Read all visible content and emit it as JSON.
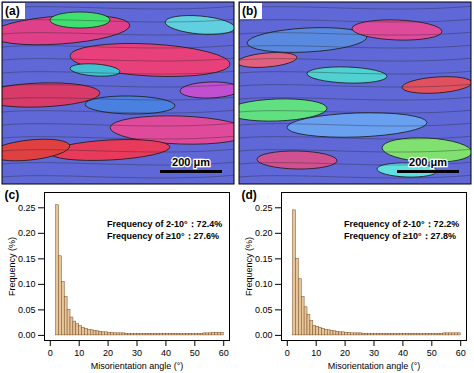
{
  "chart_data": [
    {
      "type": "image",
      "label": "(a)",
      "scale_bar": "200 μm"
    },
    {
      "type": "image",
      "label": "(b)",
      "scale_bar": "200 μm"
    },
    {
      "type": "histogram",
      "label": "(c)",
      "x_label": "Misorientation angle (°)",
      "y_label": "Frequency (%)",
      "annotations": [
        "Frequency of 2-10°：72.4%",
        "Frequency of ≥10°：27.6%"
      ],
      "color": "#e6c59a",
      "bins": [
        2,
        3,
        4,
        5,
        6,
        7,
        8,
        9,
        10,
        11,
        12,
        13,
        14,
        15,
        16,
        17,
        18,
        19,
        20,
        21,
        22,
        23,
        24,
        25,
        26,
        27,
        28,
        29,
        30,
        31,
        32,
        33,
        34,
        35,
        36,
        37,
        38,
        39,
        40,
        41,
        42,
        43,
        44,
        45,
        46,
        47,
        48,
        49,
        50,
        51,
        52,
        53,
        54,
        55,
        56,
        57,
        58,
        59,
        60
      ],
      "counts": [
        0.255,
        0.155,
        0.105,
        0.075,
        0.05,
        0.035,
        0.027,
        0.022,
        0.018,
        0.015,
        0.013,
        0.011,
        0.01,
        0.009,
        0.008,
        0.007,
        0.006,
        0.006,
        0.005,
        0.005,
        0.004,
        0.004,
        0.004,
        0.004,
        0.003,
        0.003,
        0.003,
        0.003,
        0.003,
        0.003,
        0.003,
        0.003,
        0.003,
        0.003,
        0.003,
        0.003,
        0.003,
        0.003,
        0.003,
        0.003,
        0.003,
        0.003,
        0.003,
        0.003,
        0.003,
        0.003,
        0.003,
        0.003,
        0.003,
        0.003,
        0.003,
        0.004,
        0.004,
        0.004,
        0.005,
        0.005,
        0.005,
        0.005
      ],
      "xlim": [
        -2,
        62
      ],
      "xticks": [
        0,
        10,
        20,
        30,
        40,
        50,
        60
      ],
      "ylim": [
        -0.01,
        0.28
      ],
      "yticks": [
        {
          "value": 0,
          "label": "0.00"
        },
        {
          "value": 0.05,
          "label": "0.05"
        },
        {
          "value": 0.1,
          "label": "0.10"
        },
        {
          "value": 0.15,
          "label": "0.15"
        },
        {
          "value": 0.2,
          "label": "0.20"
        },
        {
          "value": 0.25,
          "label": "0.25"
        }
      ]
    },
    {
      "type": "histogram",
      "label": "(d)",
      "x_label": "Misorientation angle (°)",
      "y_label": "Frequency (%)",
      "annotations": [
        "Frequency of 2-10°：72.2%",
        "Frequency of ≥10°：27.8%"
      ],
      "color": "#e6c59a",
      "bins": [
        2,
        3,
        4,
        5,
        6,
        7,
        8,
        9,
        10,
        11,
        12,
        13,
        14,
        15,
        16,
        17,
        18,
        19,
        20,
        21,
        22,
        23,
        24,
        25,
        26,
        27,
        28,
        29,
        30,
        31,
        32,
        33,
        34,
        35,
        36,
        37,
        38,
        39,
        40,
        41,
        42,
        43,
        44,
        45,
        46,
        47,
        48,
        49,
        50,
        51,
        52,
        53,
        54,
        55,
        56,
        57,
        58,
        59,
        60
      ],
      "counts": [
        0.245,
        0.15,
        0.11,
        0.075,
        0.055,
        0.04,
        0.028,
        0.019,
        0.017,
        0.015,
        0.013,
        0.011,
        0.01,
        0.009,
        0.008,
        0.007,
        0.006,
        0.006,
        0.005,
        0.005,
        0.004,
        0.004,
        0.004,
        0.004,
        0.003,
        0.003,
        0.003,
        0.003,
        0.003,
        0.003,
        0.003,
        0.003,
        0.003,
        0.003,
        0.003,
        0.003,
        0.003,
        0.003,
        0.003,
        0.003,
        0.003,
        0.003,
        0.003,
        0.003,
        0.003,
        0.003,
        0.003,
        0.003,
        0.003,
        0.003,
        0.003,
        0.003,
        0.004,
        0.004,
        0.004,
        0.004,
        0.004,
        0.004
      ],
      "xlim": [
        -2,
        62
      ],
      "xticks": [
        0,
        10,
        20,
        30,
        40,
        50,
        60
      ],
      "ylim": [
        -0.01,
        0.28
      ],
      "yticks": [
        {
          "value": 0,
          "label": "0.00"
        },
        {
          "value": 0.05,
          "label": "0.05"
        },
        {
          "value": 0.1,
          "label": "0.10"
        },
        {
          "value": 0.15,
          "label": "0.15"
        },
        {
          "value": 0.2,
          "label": "0.20"
        },
        {
          "value": 0.25,
          "label": "0.25"
        }
      ]
    }
  ]
}
